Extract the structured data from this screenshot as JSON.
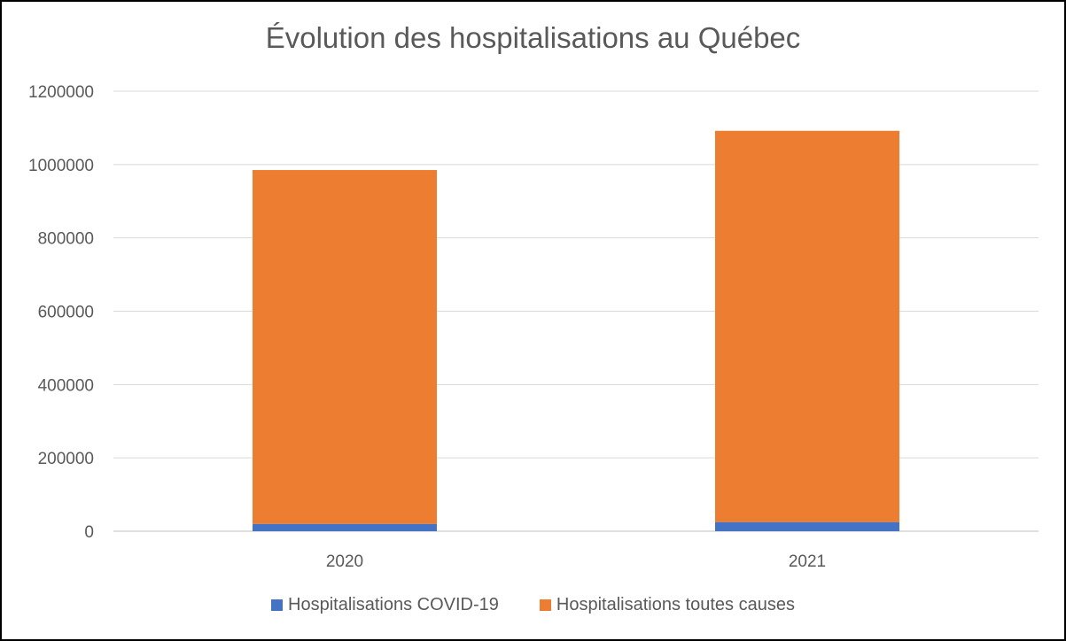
{
  "chart_data": {
    "type": "bar",
    "stacked": true,
    "title": "Évolution des hospitalisations au Québec",
    "xlabel": "",
    "ylabel": "",
    "categories": [
      "2020",
      "2021"
    ],
    "series": [
      {
        "name": "Hospitalisations COVID-19",
        "color": "#4472C4",
        "values": [
          20000,
          25000
        ]
      },
      {
        "name": "Hospitalisations toutes causes",
        "color": "#ED7D31",
        "values": [
          965000,
          1067000
        ]
      }
    ],
    "ylim": [
      0,
      1200000
    ],
    "yticks": [
      "0",
      "200000",
      "400000",
      "600000",
      "800000",
      "1000000",
      "1200000"
    ],
    "grid": true,
    "legend_position": "bottom"
  }
}
